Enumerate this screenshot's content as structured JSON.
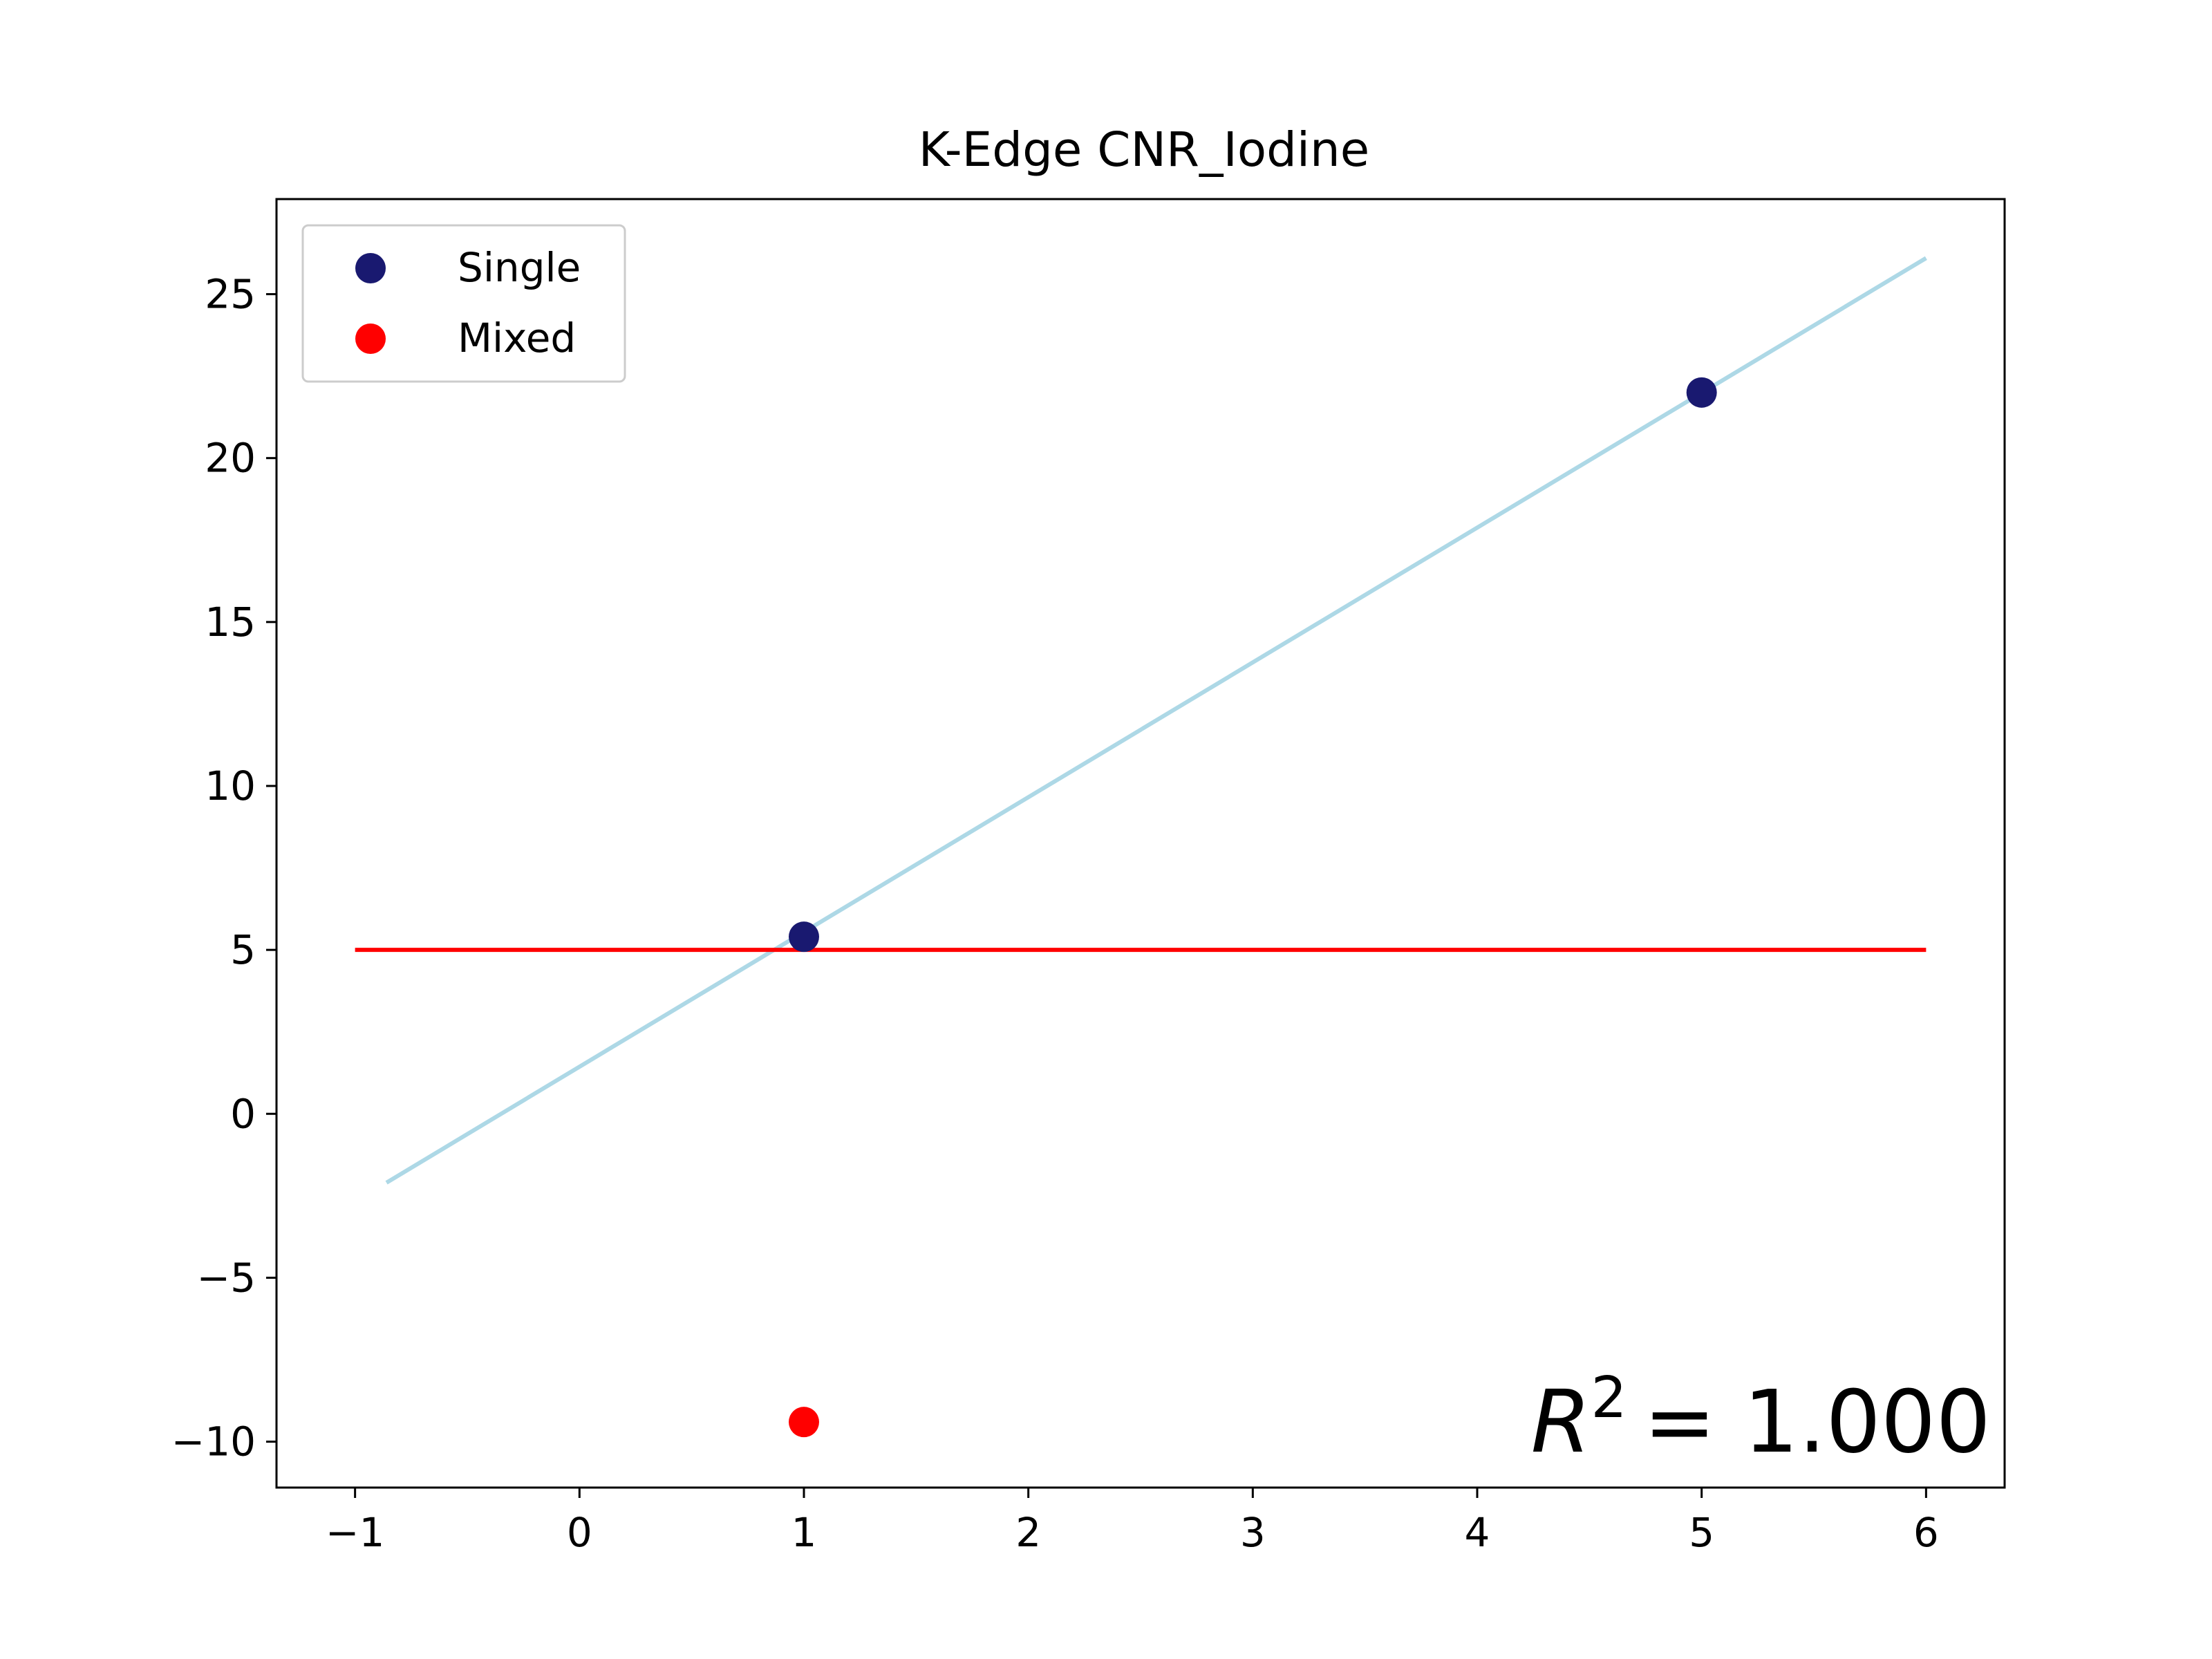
{
  "chart_data": {
    "type": "scatter",
    "title": "K-Edge CNR_Iodine",
    "xlabel": "",
    "ylabel": "",
    "xlim": [
      -1.35,
      6.35
    ],
    "ylim": [
      -11.4,
      27.9
    ],
    "xticks": [
      -1,
      0,
      1,
      2,
      3,
      4,
      5,
      6
    ],
    "xtick_labels": [
      "−1",
      "0",
      "1",
      "2",
      "3",
      "4",
      "5",
      "6"
    ],
    "yticks": [
      -10,
      -5,
      0,
      5,
      10,
      15,
      20,
      25
    ],
    "ytick_labels": [
      "−10",
      "−5",
      "0",
      "5",
      "10",
      "15",
      "20",
      "25"
    ],
    "grid": false,
    "legend_position": "upper-left",
    "series": [
      {
        "name": "Single",
        "kind": "scatter",
        "color": "#191970",
        "x": [
          1,
          5
        ],
        "y": [
          5.4,
          22.0
        ]
      },
      {
        "name": "Mixed",
        "kind": "scatter",
        "color": "#ff0000",
        "x": [
          1
        ],
        "y": [
          -9.4
        ]
      }
    ],
    "lines": [
      {
        "kind": "fit",
        "color": "#add8e6",
        "x": [
          -0.86,
          6.0
        ],
        "y": [
          -2.1,
          26.1
        ]
      },
      {
        "kind": "mean",
        "color": "#ff0000",
        "x": [
          -1.0,
          6.0
        ],
        "y": [
          5.0,
          5.0
        ]
      }
    ],
    "annotation": {
      "r2_symbol": "R",
      "r2_exponent": "2",
      "r2_value": "= 1.000"
    }
  }
}
